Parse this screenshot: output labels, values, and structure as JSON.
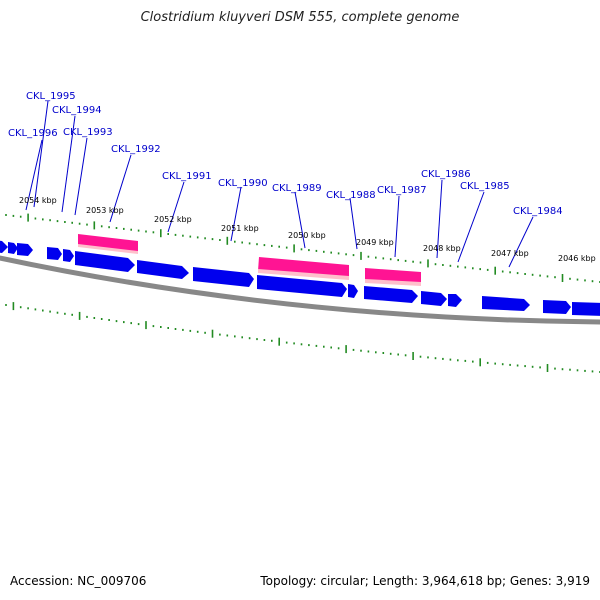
{
  "title": "Clostridium kluyveri DSM 555, complete genome",
  "accession": "Accession: NC_009706",
  "summary": "Topology: circular; Length: 3,964,618 bp; Genes: 3,919",
  "colors": {
    "cds": "#0000ee",
    "rna": "#ff1493",
    "backbone": "#888888",
    "tick": "#228b22",
    "label": "#0000cc"
  },
  "scale_labels": [
    "2054 kbp",
    "2053 kbp",
    "2052 kbp",
    "2051 kbp",
    "2050 kbp",
    "2049 kbp",
    "2048 kbp",
    "2047 kbp",
    "2046 kbp"
  ],
  "gene_labels": [
    "CKL_1995",
    "CKL_1994",
    "CKL_1996",
    "CKL_1993",
    "CKL_1992",
    "CKL_1991",
    "CKL_1990",
    "CKL_1989",
    "CKL_1988",
    "CKL_1987",
    "CKL_1986",
    "CKL_1985",
    "CKL_1984"
  ]
}
